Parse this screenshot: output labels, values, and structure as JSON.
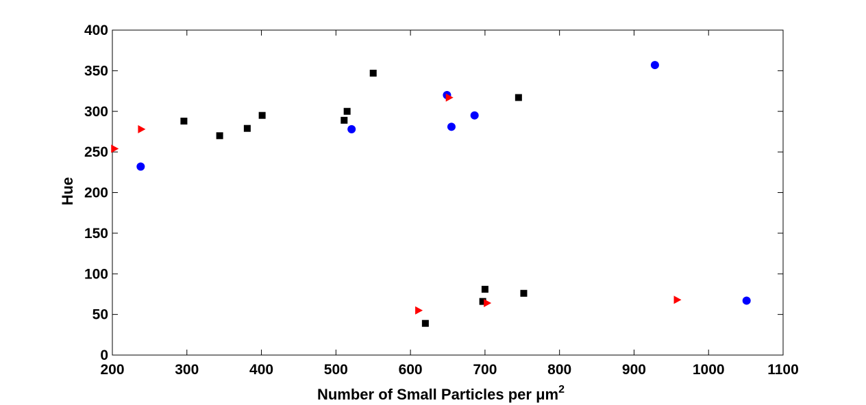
{
  "chart_data": {
    "type": "scatter",
    "title": "",
    "xlabel": "Number of Small Particles per μm",
    "xlabel_superscript": "2",
    "ylabel": "Hue",
    "xlim": [
      200,
      1100
    ],
    "ylim": [
      0,
      400
    ],
    "xticks": [
      200,
      300,
      400,
      500,
      600,
      700,
      800,
      900,
      1000,
      1100
    ],
    "yticks": [
      0,
      50,
      100,
      150,
      200,
      250,
      300,
      350,
      400
    ],
    "grid": false,
    "colors": {
      "squares": "#000000",
      "circles": "#0000ff",
      "triangles": "#ff0000"
    },
    "series": [
      {
        "name": "squares",
        "marker": "square",
        "color": "#000000",
        "points": [
          [
            296,
            288
          ],
          [
            344,
            270
          ],
          [
            381,
            279
          ],
          [
            401,
            295
          ],
          [
            511,
            289
          ],
          [
            515,
            300
          ],
          [
            550,
            347
          ],
          [
            620,
            39
          ],
          [
            697,
            66
          ],
          [
            700,
            81
          ],
          [
            745,
            317
          ],
          [
            752,
            76
          ]
        ]
      },
      {
        "name": "circles",
        "marker": "circle",
        "color": "#0000ff",
        "points": [
          [
            238,
            232
          ],
          [
            521,
            278
          ],
          [
            649,
            320
          ],
          [
            655,
            281
          ],
          [
            686,
            295
          ],
          [
            928,
            357
          ],
          [
            1051,
            67
          ]
        ]
      },
      {
        "name": "triangles",
        "marker": "triangle-right",
        "color": "#ff0000",
        "points": [
          [
            203,
            254
          ],
          [
            239,
            278
          ],
          [
            611,
            55
          ],
          [
            652,
            317
          ],
          [
            703,
            64
          ],
          [
            958,
            68
          ]
        ]
      }
    ]
  }
}
